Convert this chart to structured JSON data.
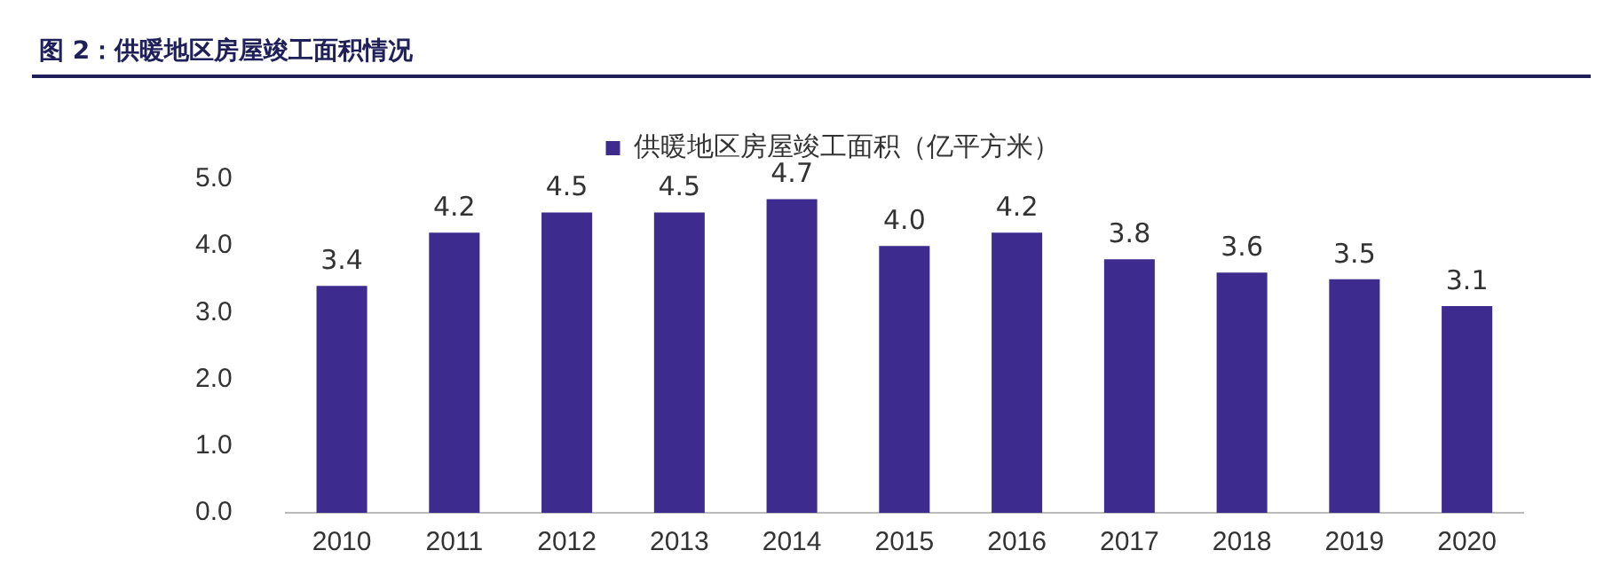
{
  "chart_data": {
    "type": "bar",
    "title": "图 2：供暖地区房屋竣工面积情况",
    "categories": [
      "2010",
      "2011",
      "2012",
      "2013",
      "2014",
      "2015",
      "2016",
      "2017",
      "2018",
      "2019",
      "2020"
    ],
    "series": [
      {
        "name": "供暖地区房屋竣工面积（亿平方米）",
        "color": "#3d2b8e",
        "values": [
          3.4,
          4.2,
          4.5,
          4.5,
          4.7,
          4.0,
          4.2,
          3.8,
          3.6,
          3.5,
          3.1
        ],
        "value_labels": [
          "3.4",
          "4.2",
          "4.5",
          "4.5",
          "4.7",
          "4.0",
          "4.2",
          "3.8",
          "3.6",
          "3.5",
          "3.1"
        ]
      }
    ],
    "ylim": [
      0,
      5
    ],
    "yticks": [
      {
        "value": 0,
        "label": "0.0"
      },
      {
        "value": 1,
        "label": "1.0"
      },
      {
        "value": 2,
        "label": "2.0"
      },
      {
        "value": 3,
        "label": "3.0"
      },
      {
        "value": 4,
        "label": "4.0"
      },
      {
        "value": 5,
        "label": "5.0"
      }
    ],
    "grid": false,
    "legend": "top"
  }
}
